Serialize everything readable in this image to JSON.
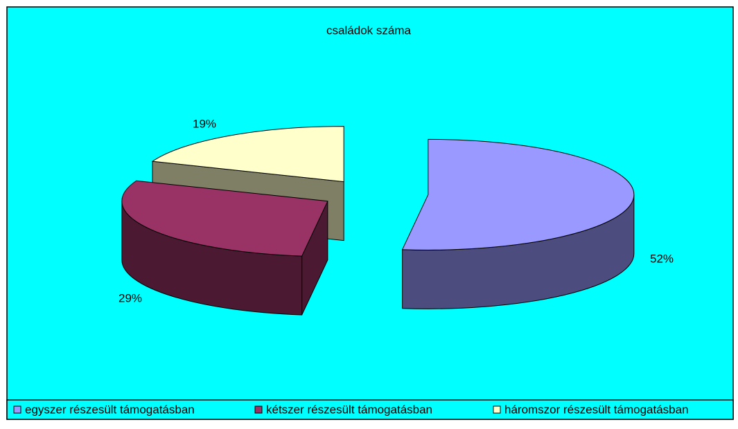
{
  "chart_data": {
    "type": "pie3d",
    "title": "családok száma",
    "categories": [
      "egyszer részesült támogatásban",
      "kétszer részesült támogatásban",
      "háromszor részesült támogatásban"
    ],
    "values": [
      52,
      29,
      19
    ],
    "value_labels": [
      "52%",
      "29%",
      "19%"
    ],
    "colors": [
      "#9999ff",
      "#993366",
      "#ffffcc"
    ],
    "legend": "bottom"
  }
}
